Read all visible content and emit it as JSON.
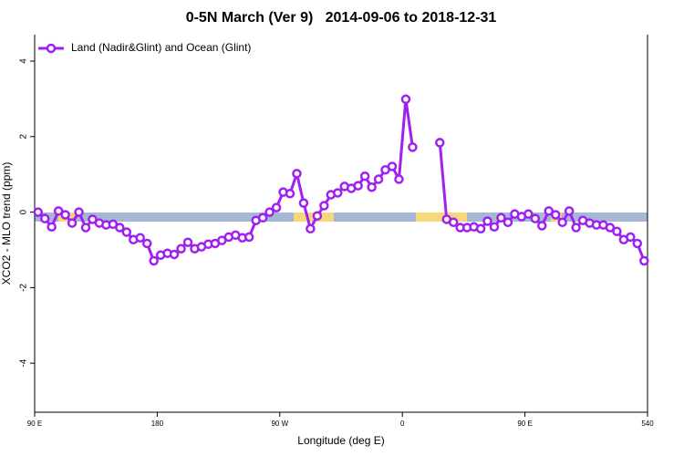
{
  "chart_data": {
    "type": "line",
    "title": "0-5N March (Ver 9)   2014-09-06 to 2018-12-31",
    "x_label": "Longitude (deg E)",
    "y_label": "XCO2 - MLO trend (ppm)",
    "legend": "top-left",
    "x": [
      92.5,
      97.5,
      102.5,
      107.5,
      112.5,
      117.5,
      122.5,
      127.5,
      132.5,
      137.5,
      142.5,
      147.5,
      152.5,
      157.5,
      162.5,
      167.5,
      172.5,
      177.5,
      182.5,
      187.5,
      192.5,
      197.5,
      202.5,
      207.5,
      212.5,
      217.5,
      222.5,
      227.5,
      232.5,
      237.5,
      242.5,
      247.5,
      252.5,
      257.5,
      262.5,
      267.5,
      272.5,
      277.5,
      282.5,
      287.5,
      292.5,
      297.5,
      302.5,
      307.5,
      312.5,
      317.5,
      322.5,
      327.5,
      332.5,
      337.5,
      342.5,
      347.5,
      352.5,
      357.5,
      362.5,
      367.5,
      372.5,
      377.5,
      382.5,
      387.5,
      392.5,
      397.5,
      402.5,
      407.5,
      412.5,
      417.5,
      422.5,
      427.5,
      432.5,
      437.5,
      442.5,
      447.5,
      452.5,
      457.5,
      462.5,
      467.5,
      472.5,
      477.5,
      482.5,
      487.5,
      492.5,
      497.5,
      502.5,
      507.5,
      512.5,
      517.5,
      522.5,
      527.5,
      532.5,
      537.5
    ],
    "series": [
      {
        "name": "Land (Nadir&Glint) and Ocean (Glint)",
        "color": "#a020f0",
        "values": [
          0.0,
          -0.17,
          -0.39,
          0.03,
          -0.07,
          -0.29,
          0.0,
          -0.41,
          -0.19,
          -0.29,
          -0.34,
          -0.32,
          -0.41,
          -0.53,
          -0.73,
          -0.68,
          -0.83,
          -1.29,
          -1.14,
          -1.09,
          -1.12,
          -0.97,
          -0.8,
          -0.97,
          -0.92,
          -0.85,
          -0.83,
          -0.75,
          -0.66,
          -0.61,
          -0.68,
          -0.66,
          -0.22,
          -0.15,
          0.0,
          0.12,
          0.53,
          0.49,
          1.02,
          0.24,
          -0.44,
          -0.1,
          0.17,
          0.46,
          0.51,
          0.68,
          0.63,
          0.7,
          0.95,
          0.66,
          0.87,
          1.12,
          1.21,
          0.87,
          2.99,
          1.72,
          null,
          null,
          null,
          1.84,
          -0.19,
          -0.27,
          -0.41,
          -0.41,
          -0.39,
          -0.44,
          -0.24,
          -0.39,
          -0.15,
          -0.27,
          -0.05,
          -0.12,
          -0.05,
          -0.17,
          -0.36,
          0.03,
          -0.07,
          -0.27,
          0.03,
          -0.41,
          -0.22,
          -0.29,
          -0.34,
          -0.34,
          -0.41,
          -0.51,
          -0.73,
          -0.66,
          -0.83,
          -1.29
        ]
      }
    ],
    "xlim": [
      90,
      540
    ],
    "xticks": [
      {
        "value": 90,
        "label": "90 E"
      },
      180,
      {
        "value": 270,
        "label": "90 W"
      },
      {
        "value": 360,
        "label": "0"
      },
      {
        "value": 450,
        "label": "90 E"
      },
      540
    ],
    "ylim": [
      -5.3,
      4.7
    ],
    "yticks": [
      -4,
      -2,
      0,
      2,
      4
    ]
  }
}
